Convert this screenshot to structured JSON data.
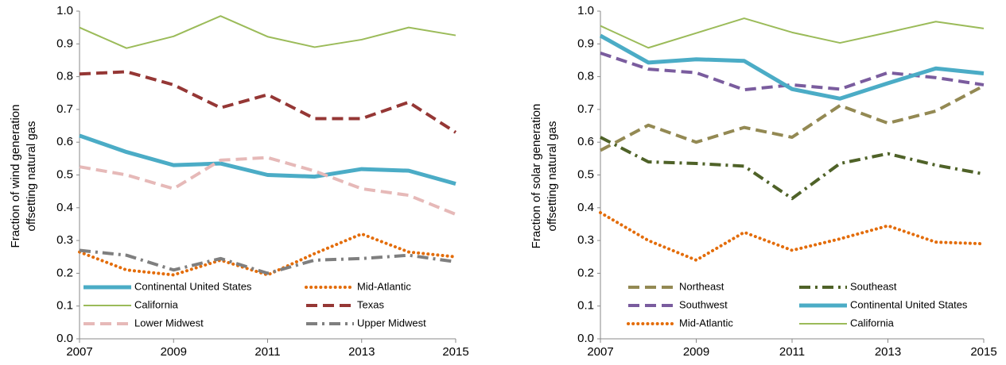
{
  "chart_data": [
    {
      "type": "line",
      "ylabel": [
        "Fraction of wind generation",
        "offsetting natural gas"
      ],
      "x": [
        2007,
        2008,
        2009,
        2010,
        2011,
        2012,
        2013,
        2014,
        2015
      ],
      "xlim": [
        2007,
        2015
      ],
      "xticks": [
        2007,
        2009,
        2011,
        2013,
        2015
      ],
      "ylim": [
        0,
        1
      ],
      "yticks": [
        {
          "value": 0,
          "label": "0.0"
        },
        0.1,
        0.2,
        0.3,
        0.4,
        0.5,
        0.6,
        0.7,
        0.8,
        0.9,
        {
          "value": 1,
          "label": "1.0"
        }
      ],
      "legend": "bottom",
      "series": [
        {
          "name": "Continental United States",
          "color": "#4bacc6",
          "style": "thick",
          "values": [
            0.62,
            0.57,
            0.53,
            0.535,
            0.5,
            0.495,
            0.518,
            0.513,
            0.473
          ]
        },
        {
          "name": "Mid-Atlantic",
          "color": "#e36c09",
          "style": "dotted",
          "values": [
            0.265,
            0.21,
            0.195,
            0.24,
            0.195,
            0.26,
            0.32,
            0.265,
            0.25
          ]
        },
        {
          "name": "California",
          "color": "#9bbb59",
          "style": "thin",
          "values": [
            0.95,
            0.887,
            0.923,
            0.985,
            0.922,
            0.89,
            0.913,
            0.95,
            0.926
          ]
        },
        {
          "name": "Texas",
          "color": "#953735",
          "style": "dashed",
          "values": [
            0.808,
            0.815,
            0.775,
            0.705,
            0.745,
            0.672,
            0.672,
            0.722,
            0.63
          ]
        },
        {
          "name": "Lower Midwest",
          "color": "#e6b9b8",
          "style": "dashed",
          "values": [
            0.525,
            0.5,
            0.458,
            0.545,
            0.553,
            0.512,
            0.458,
            0.438,
            0.38
          ]
        },
        {
          "name": "Upper Midwest",
          "color": "#7f7f7f",
          "style": "dashdot",
          "values": [
            0.27,
            0.255,
            0.21,
            0.245,
            0.2,
            0.24,
            0.245,
            0.255,
            0.235
          ]
        }
      ]
    },
    {
      "type": "line",
      "ylabel": [
        "Fraction of solar generation",
        "offsetting natural gas"
      ],
      "x": [
        2007,
        2008,
        2009,
        2010,
        2011,
        2012,
        2013,
        2014,
        2015
      ],
      "xlim": [
        2007,
        2015
      ],
      "xticks": [
        2007,
        2009,
        2011,
        2013,
        2015
      ],
      "ylim": [
        0,
        1
      ],
      "yticks": [
        {
          "value": 0,
          "label": "0.0"
        },
        0.1,
        0.2,
        0.3,
        0.4,
        0.5,
        0.6,
        0.7,
        0.8,
        0.9,
        {
          "value": 1,
          "label": "1.0"
        }
      ],
      "legend": "bottom",
      "series": [
        {
          "name": "Northeast",
          "color": "#938953",
          "style": "dashed",
          "values": [
            0.575,
            0.652,
            0.6,
            0.645,
            0.615,
            0.712,
            0.658,
            0.695,
            0.772
          ]
        },
        {
          "name": "Southeast",
          "color": "#4f6228",
          "style": "dashdot",
          "values": [
            0.615,
            0.54,
            0.535,
            0.527,
            0.428,
            0.535,
            0.565,
            0.53,
            0.503
          ]
        },
        {
          "name": "Southwest",
          "color": "#7a5c9e",
          "style": "dashed",
          "values": [
            0.872,
            0.823,
            0.812,
            0.76,
            0.775,
            0.762,
            0.812,
            0.797,
            0.775
          ]
        },
        {
          "name": "Continental United States",
          "color": "#4bacc6",
          "style": "thick",
          "values": [
            0.925,
            0.843,
            0.853,
            0.848,
            0.762,
            0.733,
            0.78,
            0.825,
            0.81
          ]
        },
        {
          "name": "Mid-Atlantic",
          "color": "#e36c09",
          "style": "dotted",
          "values": [
            0.385,
            0.3,
            0.24,
            0.325,
            0.27,
            0.305,
            0.345,
            0.295,
            0.29
          ]
        },
        {
          "name": "California",
          "color": "#9bbb59",
          "style": "thin",
          "values": [
            0.955,
            0.888,
            0.933,
            0.978,
            0.935,
            0.903,
            0.935,
            0.968,
            0.947
          ]
        }
      ]
    }
  ]
}
